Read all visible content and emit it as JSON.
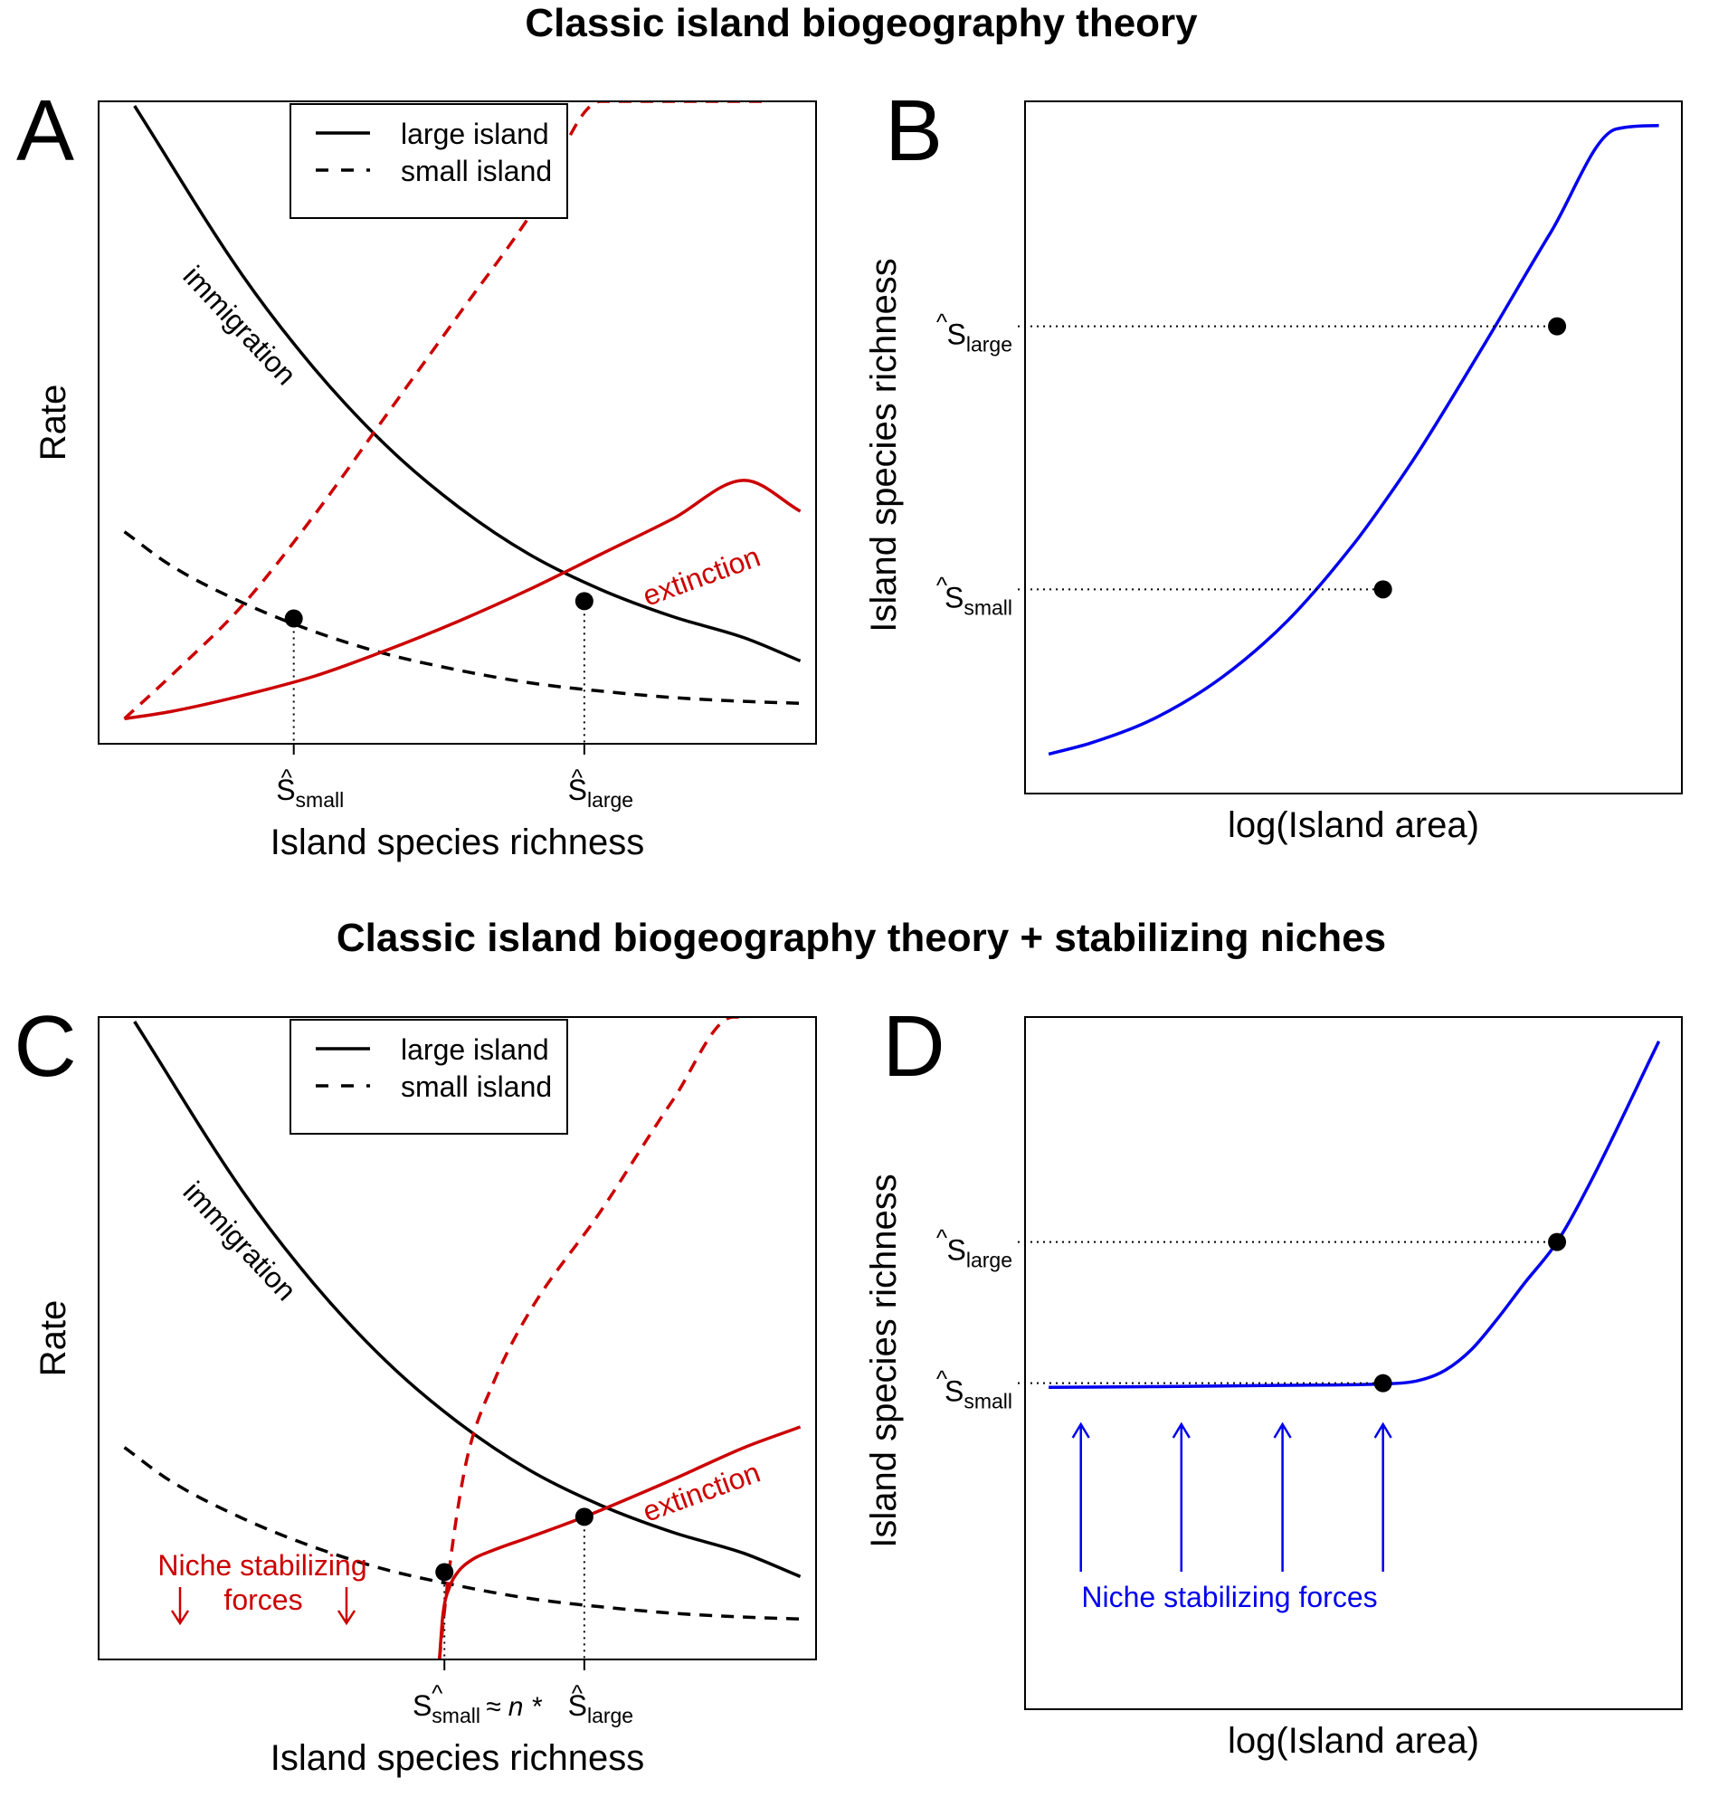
{
  "figure": {
    "title_top": "Classic island biogeography theory",
    "title_bottom": "Classic island biogeography theory + stabilizing niches"
  },
  "colors": {
    "black": "#000000",
    "red": "#cc0000",
    "blue": "#0000ee"
  },
  "chart_data": [
    {
      "panel_label": "A",
      "type": "line",
      "title": "",
      "xlabel": "Island species richness",
      "ylabel": "Rate",
      "xlim": [
        0,
        100
      ],
      "ylim": [
        0,
        100
      ],
      "legend": {
        "placement": "top-center",
        "entries": [
          {
            "label": "large island",
            "style": "solid"
          },
          {
            "label": "small island",
            "style": "dashed"
          }
        ]
      },
      "series": [
        {
          "name": "immigration (large island)",
          "style": "solid",
          "color": "black",
          "x": [
            5,
            20,
            30,
            40,
            50,
            60,
            70,
            80,
            90,
            97.8
          ],
          "y": [
            99.3,
            73,
            58.5,
            46.5,
            37,
            29.5,
            24,
            19.8,
            16.5,
            12.9
          ]
        },
        {
          "name": "immigration (small island)",
          "style": "dashed",
          "color": "black",
          "x": [
            3.6,
            10,
            20,
            30,
            40,
            50,
            60,
            70,
            80,
            90,
            97.8
          ],
          "y": [
            33,
            27.8,
            22,
            17.5,
            14,
            11.5,
            9.5,
            8.2,
            7.2,
            6.6,
            6.3
          ]
        },
        {
          "name": "extinction (large island)",
          "style": "solid",
          "color": "red",
          "x": [
            3.6,
            10,
            20,
            30,
            40,
            50,
            60,
            70,
            80,
            90,
            97.8
          ],
          "y": [
            3.9,
            5,
            7.5,
            10.5,
            14.5,
            19,
            24,
            29.5,
            35,
            41,
            36.2
          ]
        },
        {
          "name": "extinction (small island)",
          "style": "dashed",
          "color": "red",
          "x": [
            3.6,
            10,
            20,
            30,
            40,
            50,
            60,
            70,
            80,
            90,
            93.4
          ],
          "y": [
            3.9,
            10.5,
            21.5,
            35.5,
            51,
            66.5,
            82,
            100,
            100,
            100,
            100
          ]
        }
      ],
      "points": [
        {
          "name": "S-hat small",
          "x": 27.2,
          "y": 19.5
        },
        {
          "name": "S-hat large",
          "x": 67.7,
          "y": 22.2
        }
      ],
      "annotations": [
        {
          "text": "immigration",
          "color": "black"
        },
        {
          "text": "extinction",
          "color": "red"
        }
      ],
      "x_ticks": [
        {
          "base": "S",
          "sub": "small",
          "suffix": ""
        },
        {
          "base": "S",
          "sub": "large",
          "suffix": ""
        }
      ]
    },
    {
      "panel_label": "B",
      "type": "line",
      "title": "",
      "xlabel": "log(Island area)",
      "ylabel": "Island species richness",
      "xlim": [
        0,
        100
      ],
      "ylim": [
        0,
        100
      ],
      "series": [
        {
          "name": "species-area curve",
          "style": "solid",
          "color": "blue",
          "x": [
            3.6,
            10,
            20,
            30,
            40,
            50,
            55,
            60,
            70,
            80,
            90,
            96.5
          ],
          "y": [
            5.7,
            7.3,
            11,
            16.8,
            25,
            36,
            42.5,
            49.5,
            65,
            81,
            96,
            96.5
          ]
        }
      ],
      "points": [
        {
          "name": "S-hat small",
          "x": 54.5,
          "y": 29.5
        },
        {
          "name": "S-hat large",
          "x": 81,
          "y": 67.5
        }
      ],
      "y_ticks": [
        {
          "base": "S",
          "sub": "large"
        },
        {
          "base": "S",
          "sub": "small"
        }
      ]
    },
    {
      "panel_label": "C",
      "type": "line",
      "title": "",
      "xlabel": "Island species richness",
      "ylabel": "Rate",
      "xlim": [
        0,
        100
      ],
      "ylim": [
        0,
        100
      ],
      "legend": {
        "placement": "top-center",
        "entries": [
          {
            "label": "large island",
            "style": "solid"
          },
          {
            "label": "small island",
            "style": "dashed"
          }
        ]
      },
      "series": [
        {
          "name": "immigration (large island)",
          "style": "solid",
          "color": "black",
          "x": [
            5,
            20,
            30,
            40,
            50,
            60,
            70,
            80,
            90,
            97.8
          ],
          "y": [
            99.3,
            73,
            58.5,
            46.5,
            37,
            29.5,
            24,
            19.8,
            16.5,
            12.9
          ]
        },
        {
          "name": "immigration (small island)",
          "style": "dashed",
          "color": "black",
          "x": [
            3.6,
            10,
            20,
            30,
            40,
            50,
            60,
            70,
            80,
            90,
            97.8
          ],
          "y": [
            33,
            27.8,
            22,
            17.5,
            14,
            11.5,
            9.5,
            8.2,
            7.2,
            6.6,
            6.3
          ]
        },
        {
          "name": "extinction (large island)",
          "style": "solid",
          "color": "red",
          "x": [
            47.5,
            48,
            49,
            50,
            52,
            55,
            60,
            67.7,
            80,
            90,
            97.8
          ],
          "y": [
            0,
            7,
            11.5,
            13.5,
            15.5,
            17,
            19,
            22.2,
            28,
            33,
            36.2
          ]
        },
        {
          "name": "extinction (small island)",
          "style": "dashed",
          "color": "red",
          "x": [
            47.5,
            48.5,
            50,
            51.5,
            55,
            60,
            70,
            80,
            88.5,
            89.5
          ],
          "y": [
            0,
            10.5,
            23,
            32,
            43,
            54,
            69.8,
            87,
            100,
            100
          ]
        }
      ],
      "points": [
        {
          "name": "S-hat small",
          "x": 48.2,
          "y": 13.6
        },
        {
          "name": "S-hat large",
          "x": 67.7,
          "y": 22.2
        }
      ],
      "annotations": [
        {
          "text": "immigration",
          "color": "black"
        },
        {
          "text": "extinction",
          "color": "red"
        },
        {
          "text": "Niche stabilizing",
          "color": "red"
        },
        {
          "text": "forces",
          "color": "red"
        }
      ],
      "x_ticks": [
        {
          "base": "S",
          "sub": "small",
          "suffix": "≈ n *"
        },
        {
          "base": "S",
          "sub": "large",
          "suffix": ""
        }
      ]
    },
    {
      "panel_label": "D",
      "type": "line",
      "title": "",
      "xlabel": "log(Island area)",
      "ylabel": "Island species richness",
      "xlim": [
        0,
        100
      ],
      "ylim": [
        0,
        100
      ],
      "series": [
        {
          "name": "species-area curve",
          "style": "solid",
          "color": "blue",
          "x": [
            3.6,
            20,
            40,
            54.5,
            60,
            64,
            68,
            72,
            76,
            81,
            86,
            96.5
          ],
          "y": [
            46.5,
            46.6,
            46.8,
            47,
            47.5,
            49,
            52,
            56.5,
            61.5,
            67.5,
            76,
            96.5
          ]
        }
      ],
      "points": [
        {
          "name": "S-hat small",
          "x": 54.5,
          "y": 47.1
        },
        {
          "name": "S-hat large",
          "x": 81,
          "y": 67.5
        }
      ],
      "arrows_x": [
        8.5,
        23.8,
        39.2,
        54.5
      ],
      "annotations": [
        {
          "text": "Niche stabilizing forces",
          "color": "blue"
        }
      ],
      "y_ticks": [
        {
          "base": "S",
          "sub": "large"
        },
        {
          "base": "S",
          "sub": "small"
        }
      ]
    }
  ]
}
